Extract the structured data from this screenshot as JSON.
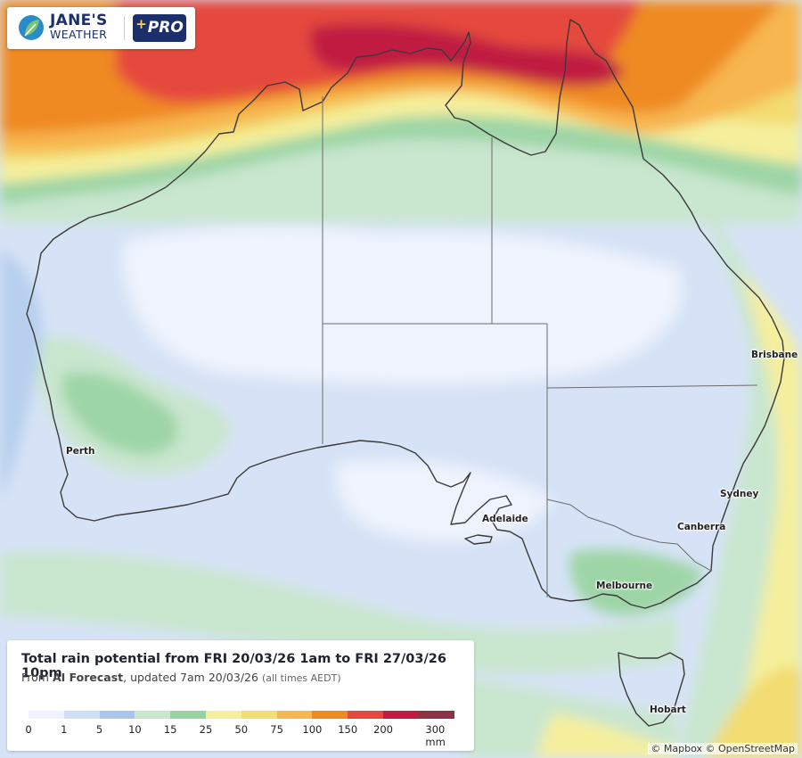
{
  "brand": {
    "name_line1": "JANE'S",
    "name_line2": "WEATHER",
    "pro_label": "PRO",
    "pro_plus": "+",
    "color": "#1b2f6b"
  },
  "legend": {
    "title": "Total rain potential from FRI 20/03/26 1am to FRI 27/03/26 10pm",
    "from_text": "From ",
    "source": "AI Forecast",
    "updated": ", updated 7am 20/03/26 ",
    "timezone": "(all times AEDT)",
    "scale_labels": [
      "0",
      "1",
      "5",
      "10",
      "15",
      "25",
      "50",
      "75",
      "100",
      "150",
      "200",
      "300 mm"
    ],
    "scale_colors": [
      "#eef3fd",
      "#cfdff5",
      "#a9c5ea",
      "#c9e6cf",
      "#95d3a0",
      "#f5ef9c",
      "#f3dc71",
      "#f7b650",
      "#ef8a22",
      "#e5493e",
      "#c01b42",
      "#8a3344"
    ]
  },
  "cities": {
    "perth": "Perth",
    "adelaide": "Adelaide",
    "melbourne": "Melbourne",
    "hobart": "Hobart",
    "canberra": "Canberra",
    "sydney": "Sydney",
    "brisbane": "Brisbane"
  },
  "attribution": "© Mapbox © OpenStreetMap"
}
